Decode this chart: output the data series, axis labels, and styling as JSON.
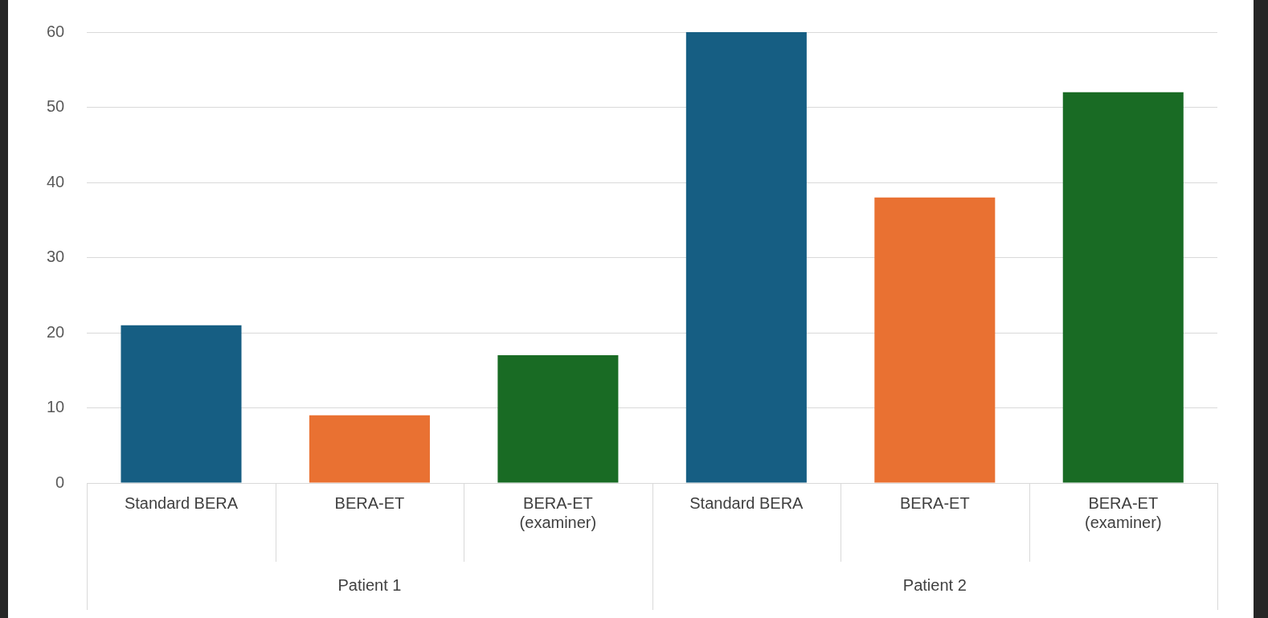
{
  "chart_data": {
    "type": "bar",
    "categories": [
      "Standard BERA",
      "BERA-ET",
      "BERA-ET (examiner)",
      "Standard BERA",
      "BERA-ET",
      "BERA-ET (examiner)"
    ],
    "values": [
      21,
      9,
      17,
      60,
      38,
      52
    ],
    "colors": [
      "#165e83",
      "#e97132",
      "#196b24",
      "#165e83",
      "#e97132",
      "#196b24"
    ],
    "ylim": [
      0,
      60
    ],
    "yticks": [
      0,
      10,
      20,
      30,
      40,
      50,
      60
    ],
    "grid": "y",
    "legend": false,
    "annotations": [
      "Patient 1",
      "Patient 2"
    ]
  }
}
